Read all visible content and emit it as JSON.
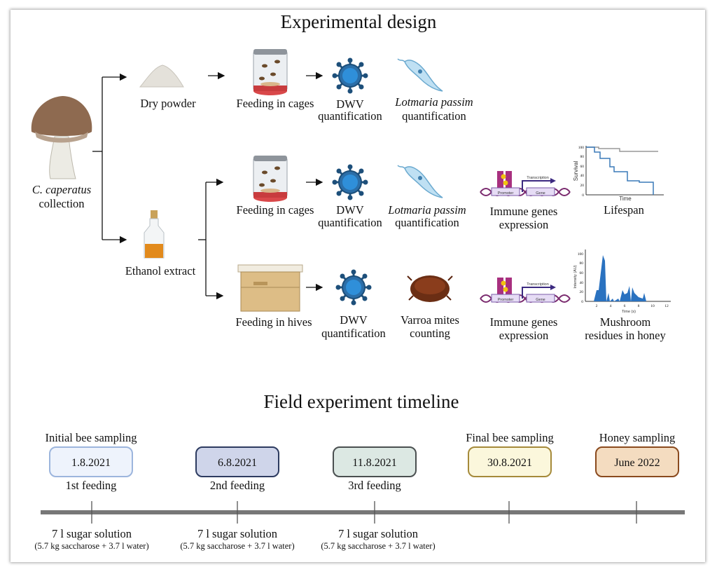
{
  "design": {
    "title": "Experimental design",
    "source": {
      "species": "C. caperatus",
      "label": "collection"
    },
    "dry_powder": "Dry powder",
    "ethanol_extract": "Ethanol extract",
    "row1": {
      "feeding": "Feeding in cages",
      "dwv": [
        "DWV",
        "quantification"
      ],
      "lotmaria": [
        "Lotmaria passim",
        "quantification"
      ]
    },
    "row2": {
      "feeding": "Feeding in cages",
      "dwv": [
        "DWV",
        "quantification"
      ],
      "lotmaria": [
        "Lotmaria passim",
        "quantification"
      ],
      "immune": [
        "Immune genes",
        "expression"
      ],
      "lifespan": "Lifespan"
    },
    "row3": {
      "feeding": "Feeding in hives",
      "dwv": [
        "DWV",
        "quantification"
      ],
      "varroa": [
        "Varroa mites",
        "counting"
      ],
      "immune": [
        "Immune genes",
        "expression"
      ],
      "residues": [
        "Mushroom",
        "residues in honey"
      ]
    },
    "gene_icon": {
      "promoter": "Promoter",
      "gene": "Gene",
      "transcription": "Transcription"
    },
    "survival_chart": {
      "ylabel": "Survival",
      "xlabel": "Time",
      "yticks": [
        "100",
        "80",
        "60",
        "40",
        "20",
        "0"
      ]
    },
    "intensity_chart": {
      "ylabel": "Intensity (AU)",
      "xlabel": "Time (s)",
      "yticks": [
        "100",
        "80",
        "60",
        "40",
        "20",
        "0"
      ],
      "xticks": [
        "2",
        "4",
        "6",
        "8",
        "10",
        "12"
      ]
    }
  },
  "timeline": {
    "title": "Field experiment timeline",
    "events": [
      {
        "above": "Initial bee sampling",
        "date": "1.8.2021",
        "below": "1st feeding",
        "fill": "#eef3fc",
        "border": "#9cb5dd"
      },
      {
        "above": "",
        "date": "6.8.2021",
        "below": "2nd feeding",
        "fill": "#cfd5ea",
        "border": "#2d3b60"
      },
      {
        "above": "",
        "date": "11.8.2021",
        "below": "3rd feeding",
        "fill": "#dce8e3",
        "border": "#4a4f50"
      },
      {
        "above": "Final bee sampling",
        "date": "30.8.2021",
        "below": "",
        "fill": "#fbf7dc",
        "border": "#a58a3a"
      },
      {
        "above": "Honey sampling",
        "date": "June 2022",
        "below": "",
        "fill": "#f4dcc0",
        "border": "#8a4a1e"
      }
    ],
    "feedings": [
      {
        "main": "7 l sugar solution",
        "detail": "(5.7 kg saccharose + 3.7 l water)"
      },
      {
        "main": "7 l sugar solution",
        "detail": "(5.7 kg saccharose + 3.7 l water)"
      },
      {
        "main": "7 l sugar solution",
        "detail": "(5.7 kg saccharose + 3.7 l water)"
      }
    ]
  }
}
